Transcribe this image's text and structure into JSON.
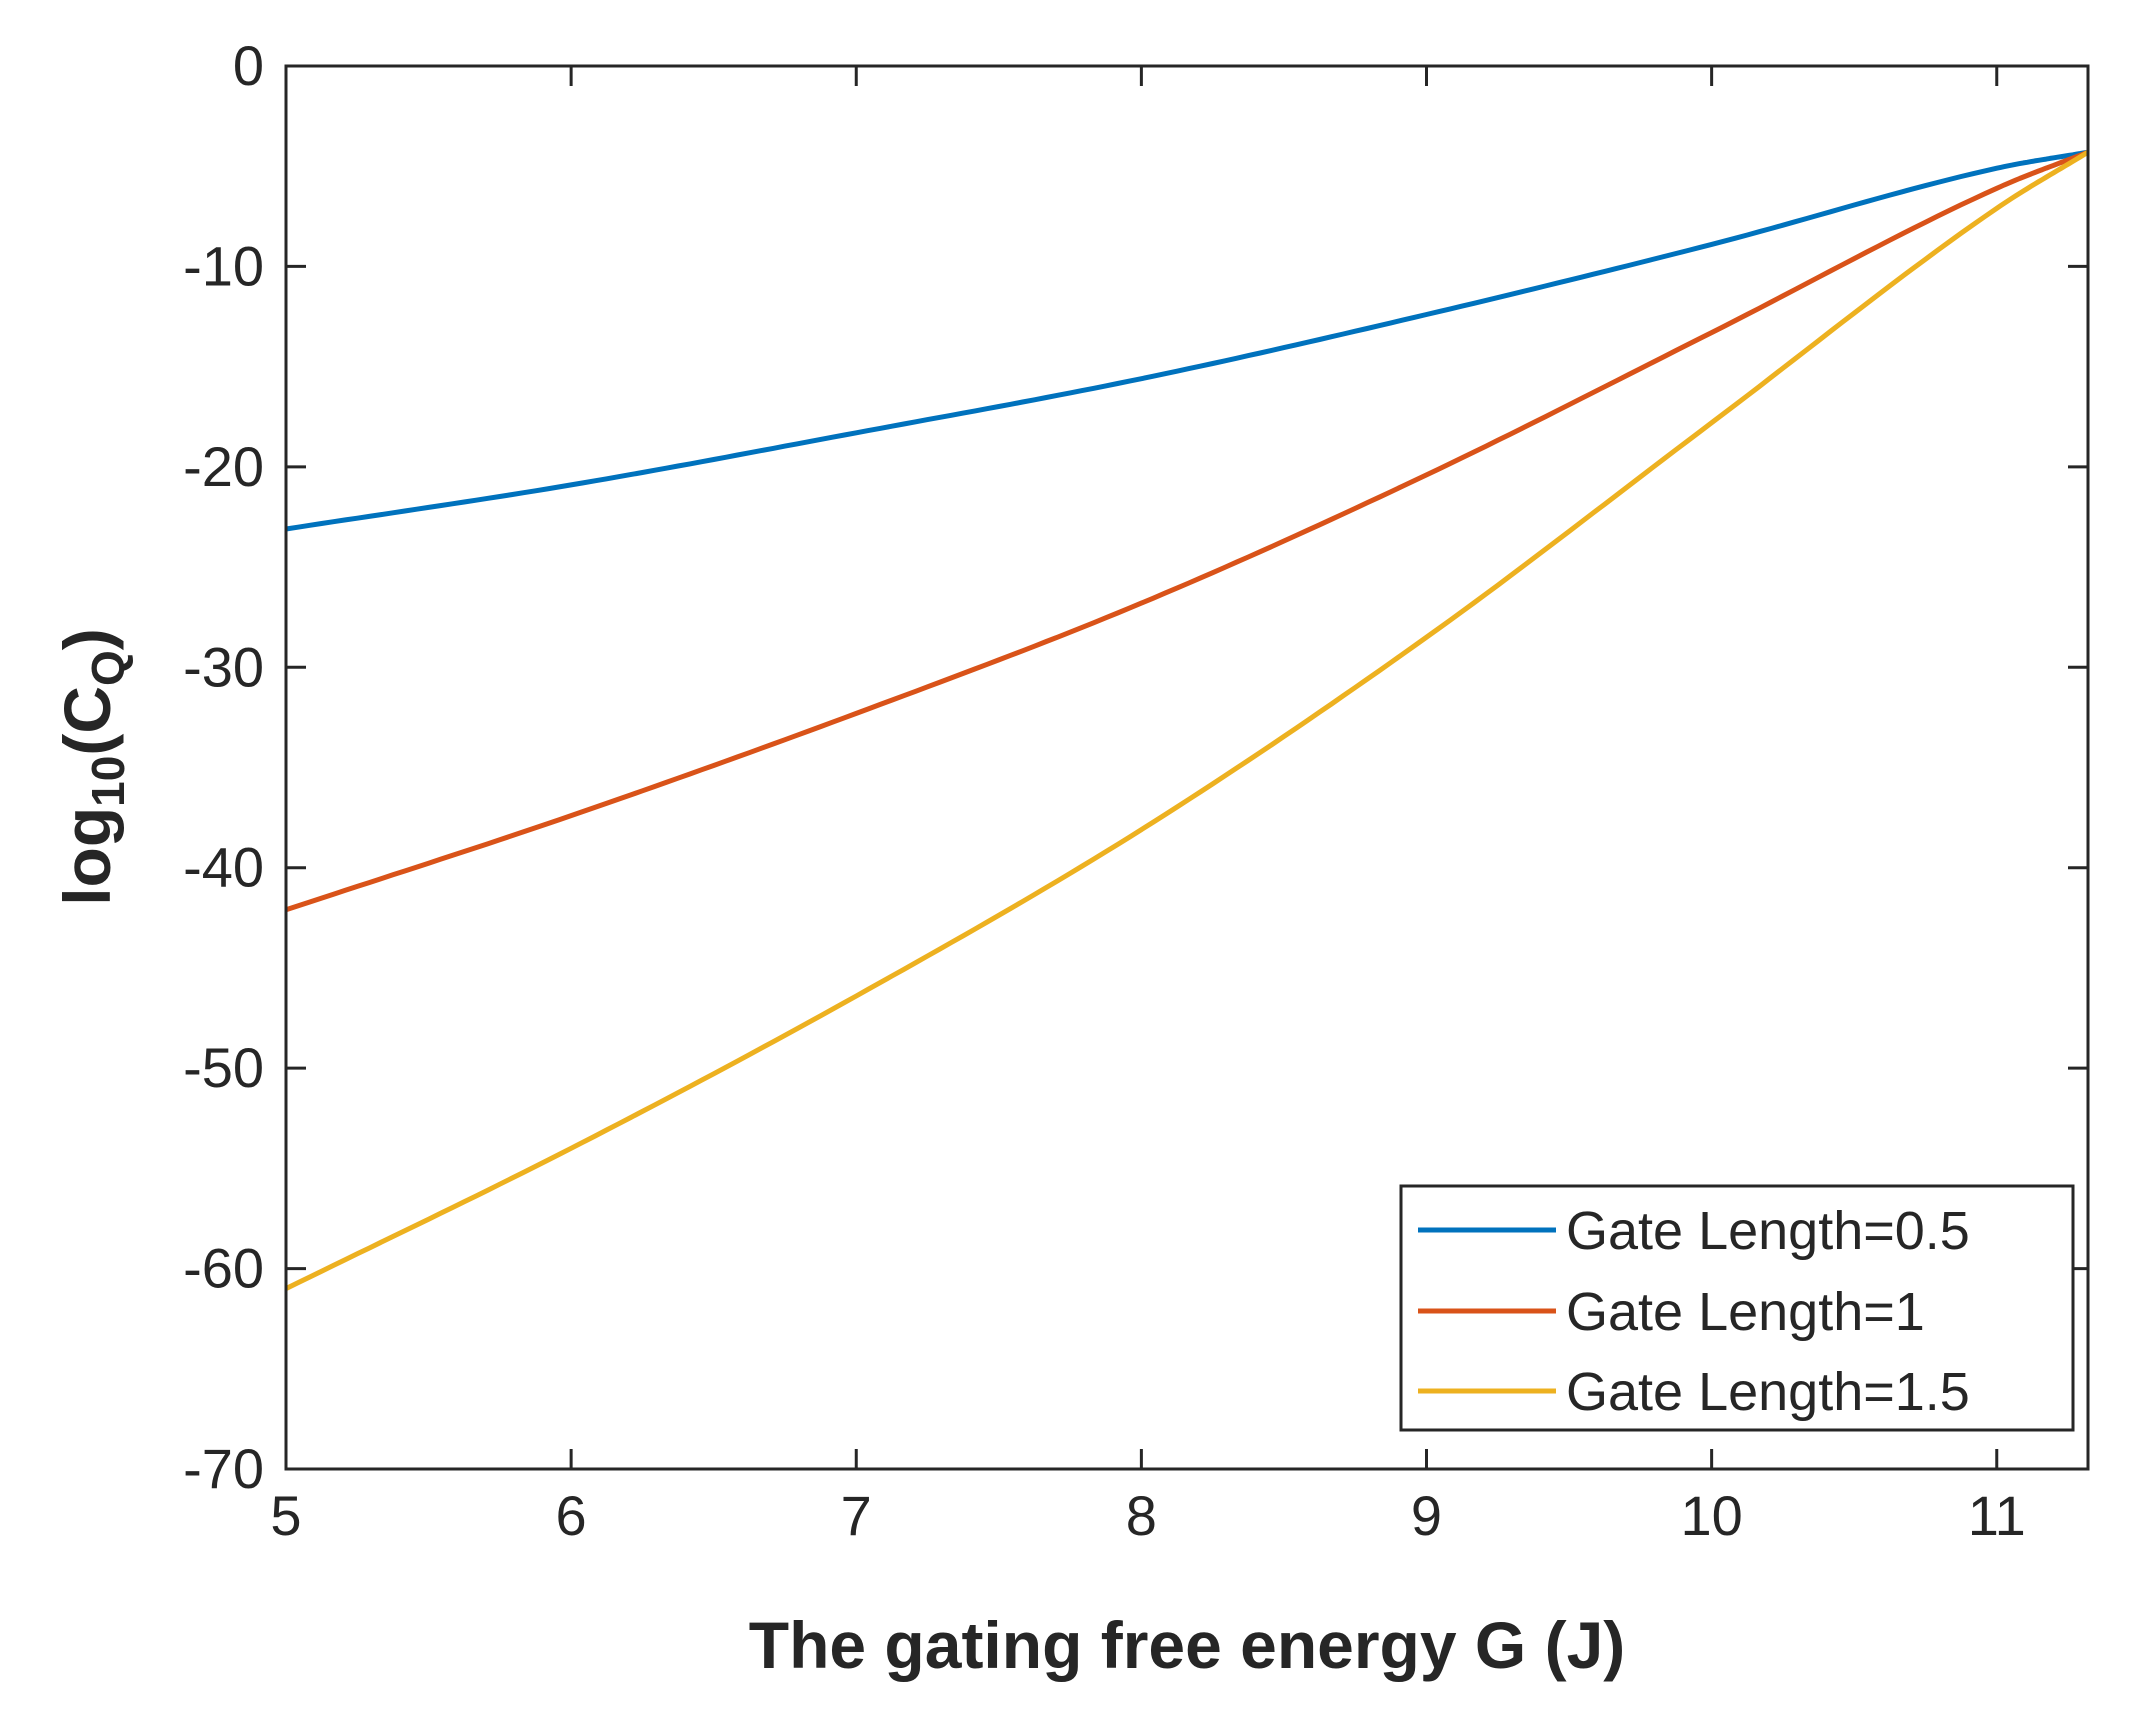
{
  "chart_data": {
    "type": "line",
    "title": "",
    "xlabel": "The gating free energy G (J)",
    "ylabel_main": "log",
    "ylabel_sub": "10",
    "ylabel_open": "(C",
    "ylabel_sub2": "Q",
    "ylabel_close": ")",
    "xlim": [
      5,
      11.32
    ],
    "ylim": [
      -70,
      0
    ],
    "xticks": [
      5,
      6,
      7,
      8,
      9,
      10,
      11
    ],
    "yticks": [
      0,
      -10,
      -20,
      -30,
      -40,
      -50,
      -60,
      -70
    ],
    "grid": false,
    "legend_position": "bottom-right",
    "x": [
      5,
      6,
      7,
      8,
      9,
      10,
      11,
      11.32
    ],
    "series": [
      {
        "name": "Gate Length=0.5",
        "color": "#0072BD",
        "values": [
          -23.1,
          -20.9,
          -18.3,
          -15.6,
          -12.4,
          -8.9,
          -5.1,
          -4.3
        ]
      },
      {
        "name": "Gate Length=1",
        "color": "#D95319",
        "values": [
          -42.1,
          -37.4,
          -32.3,
          -26.8,
          -20.4,
          -13.3,
          -6.1,
          -4.3
        ]
      },
      {
        "name": "Gate Length=1.5",
        "color": "#EDB120",
        "values": [
          -61.0,
          -54.0,
          -46.4,
          -38.1,
          -28.5,
          -17.8,
          -7.1,
          -4.3
        ]
      }
    ]
  }
}
